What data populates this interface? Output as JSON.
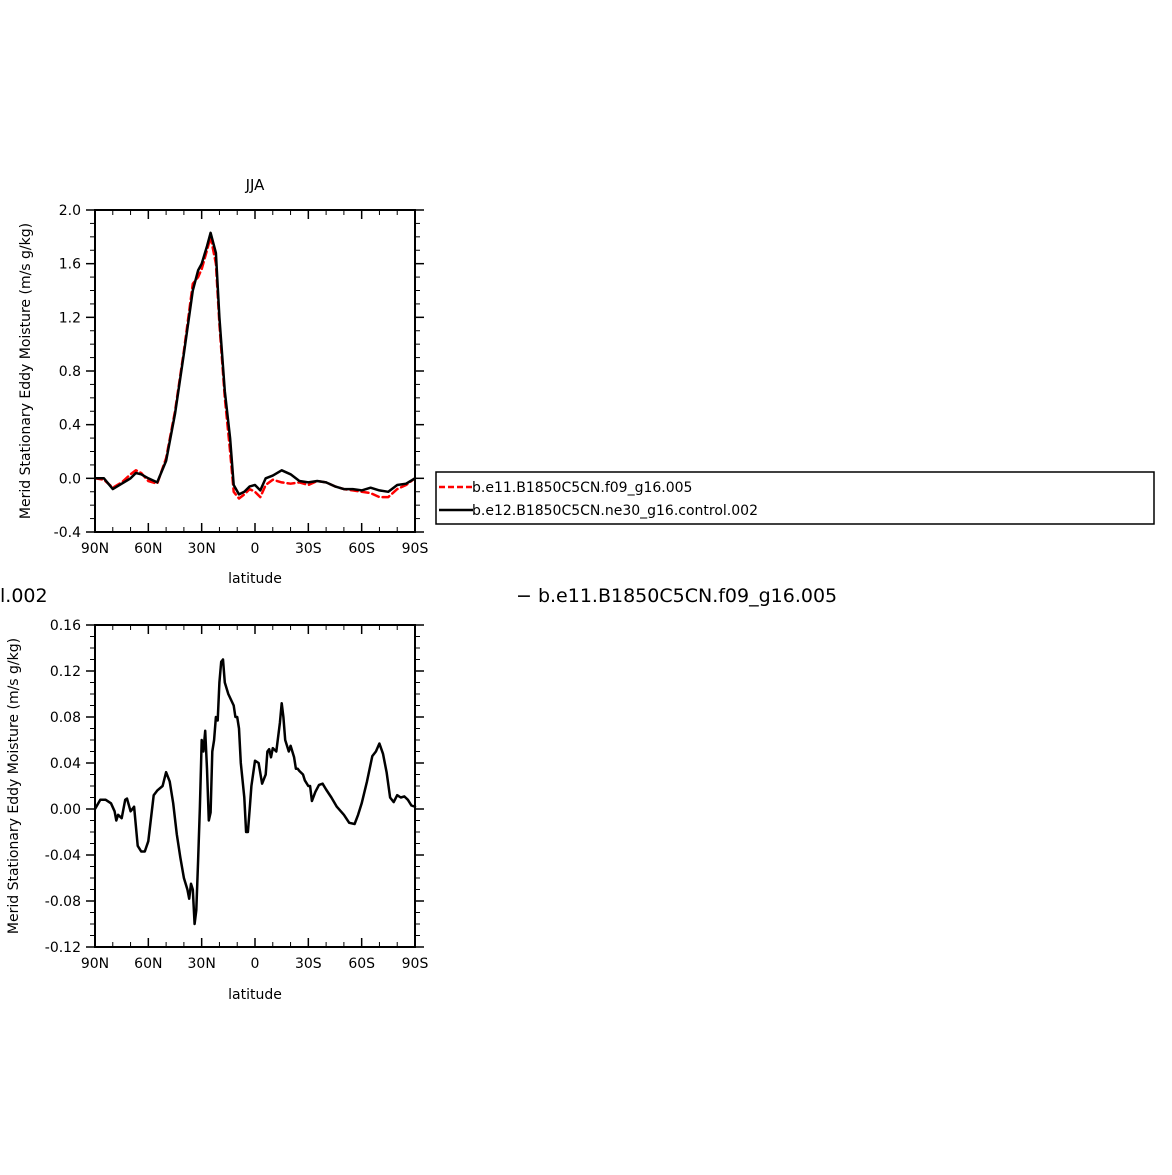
{
  "chart_data": [
    {
      "type": "line",
      "title": "JJA",
      "xlabel": "latitude",
      "ylabel": "Merid Stationary Eddy Moisture (m/s g/kg)",
      "xlim": [
        90,
        -90
      ],
      "ylim": [
        -0.4,
        2.0
      ],
      "x_ticks": [
        90,
        60,
        30,
        0,
        -30,
        -60,
        -90
      ],
      "x_tick_labels": [
        "90N",
        "60N",
        "30N",
        "0",
        "30S",
        "60S",
        "90S"
      ],
      "y_ticks": [
        -0.4,
        0.0,
        0.4,
        0.8,
        1.2,
        1.6,
        2.0
      ],
      "y_tick_labels": [
        "-0.4",
        "0.0",
        "0.4",
        "0.8",
        "1.2",
        "1.6",
        "2.0"
      ],
      "legend_position": "right",
      "series": [
        {
          "name": "b.e11.B1850C5CN.f09_g16.005",
          "color": "#ff0000",
          "dash": "dashed",
          "x": [
            90,
            85,
            80,
            75,
            70,
            67,
            64,
            60,
            55,
            50,
            45,
            40,
            35,
            32,
            30,
            27,
            25,
            22,
            20,
            17,
            14,
            12,
            9,
            6,
            3,
            0,
            -3,
            -6,
            -10,
            -15,
            -20,
            -25,
            -30,
            -35,
            -40,
            -45,
            -50,
            -55,
            -60,
            -65,
            -70,
            -75,
            -80,
            -85,
            -90
          ],
          "y": [
            0.0,
            -0.01,
            -0.07,
            -0.03,
            0.03,
            0.06,
            0.04,
            -0.02,
            -0.04,
            0.15,
            0.5,
            0.95,
            1.45,
            1.5,
            1.56,
            1.7,
            1.8,
            1.6,
            1.15,
            0.6,
            0.2,
            -0.1,
            -0.15,
            -0.12,
            -0.08,
            -0.1,
            -0.14,
            -0.05,
            -0.01,
            -0.03,
            -0.04,
            -0.03,
            -0.05,
            -0.02,
            -0.03,
            -0.06,
            -0.08,
            -0.09,
            -0.1,
            -0.11,
            -0.14,
            -0.14,
            -0.08,
            -0.05,
            0.0
          ]
        },
        {
          "name": "b.e12.B1850C5CN.ne30_g16.control.002",
          "color": "#000000",
          "dash": "solid",
          "x": [
            90,
            85,
            80,
            75,
            70,
            67,
            64,
            60,
            55,
            50,
            45,
            40,
            35,
            32,
            30,
            27,
            25,
            22,
            20,
            17,
            14,
            12,
            9,
            6,
            3,
            0,
            -3,
            -6,
            -10,
            -15,
            -20,
            -25,
            -30,
            -35,
            -40,
            -45,
            -50,
            -55,
            -60,
            -65,
            -70,
            -75,
            -80,
            -85,
            -90
          ],
          "y": [
            0.0,
            0.0,
            -0.08,
            -0.04,
            0.0,
            0.04,
            0.03,
            0.0,
            -0.03,
            0.13,
            0.48,
            0.93,
            1.4,
            1.55,
            1.6,
            1.73,
            1.83,
            1.68,
            1.2,
            0.65,
            0.3,
            -0.05,
            -0.12,
            -0.1,
            -0.06,
            -0.05,
            -0.09,
            0.0,
            0.02,
            0.06,
            0.03,
            -0.02,
            -0.03,
            -0.02,
            -0.03,
            -0.06,
            -0.08,
            -0.08,
            -0.09,
            -0.07,
            -0.09,
            -0.1,
            -0.05,
            -0.04,
            0.0
          ]
        }
      ]
    },
    {
      "type": "line",
      "title": "",
      "xlabel": "latitude",
      "ylabel": "Merid Stationary Eddy Moisture (m/s g/kg)",
      "xlim": [
        90,
        -90
      ],
      "ylim": [
        -0.12,
        0.16
      ],
      "x_ticks": [
        90,
        60,
        30,
        0,
        -30,
        -60,
        -90
      ],
      "x_tick_labels": [
        "90N",
        "60N",
        "30N",
        "0",
        "30S",
        "60S",
        "90S"
      ],
      "y_ticks": [
        -0.12,
        -0.08,
        -0.04,
        0.0,
        0.04,
        0.08,
        0.12,
        0.16
      ],
      "y_tick_labels": [
        "-0.12",
        "-0.08",
        "-0.04",
        "0.00",
        "0.04",
        "0.08",
        "0.12",
        "0.16"
      ],
      "heading_left": "l.002",
      "heading_right": "− b.e11.B1850C5CN.f09_g16.005",
      "series": [
        {
          "color": "#000000",
          "dash": "solid",
          "x": [
            90,
            87,
            84,
            81,
            79,
            78,
            77,
            75,
            73,
            72,
            70,
            68,
            66,
            64,
            62,
            60,
            57,
            55,
            52,
            50,
            48,
            46,
            44,
            42,
            40,
            38,
            37,
            36,
            35,
            34,
            33,
            32,
            31,
            30,
            29,
            28,
            27,
            26,
            25,
            24,
            23,
            22,
            21,
            20,
            19,
            18,
            17,
            15,
            12,
            11,
            10,
            9,
            8,
            6,
            5,
            4,
            3,
            2,
            0,
            -2,
            -4,
            -6,
            -7,
            -8,
            -9,
            -10,
            -12,
            -14,
            -15,
            -16,
            -17,
            -19,
            -20,
            -22,
            -23,
            -24,
            -25,
            -27,
            -28,
            -30,
            -31,
            -32,
            -34,
            -36,
            -38,
            -40,
            -43,
            -46,
            -50,
            -53,
            -56,
            -58,
            -60,
            -63,
            -66,
            -68,
            -70,
            -72,
            -74,
            -76,
            -78,
            -80,
            -82,
            -84,
            -86,
            -88,
            -90
          ],
          "y": [
            0.0,
            0.008,
            0.008,
            0.005,
            -0.002,
            -0.01,
            -0.005,
            -0.008,
            0.008,
            0.009,
            -0.002,
            0.002,
            -0.032,
            -0.037,
            -0.037,
            -0.028,
            0.012,
            0.016,
            0.02,
            0.032,
            0.024,
            0.005,
            -0.022,
            -0.042,
            -0.06,
            -0.07,
            -0.078,
            -0.065,
            -0.07,
            -0.1,
            -0.088,
            -0.045,
            0.002,
            0.06,
            0.05,
            0.068,
            0.035,
            -0.01,
            -0.003,
            0.05,
            0.06,
            0.08,
            0.077,
            0.11,
            0.128,
            0.13,
            0.11,
            0.1,
            0.09,
            0.08,
            0.08,
            0.07,
            0.04,
            0.01,
            -0.02,
            -0.02,
            0.0,
            0.02,
            0.042,
            0.04,
            0.022,
            0.03,
            0.05,
            0.052,
            0.045,
            0.053,
            0.05,
            0.075,
            0.092,
            0.08,
            0.06,
            0.05,
            0.055,
            0.045,
            0.035,
            0.035,
            0.033,
            0.03,
            0.025,
            0.02,
            0.02,
            0.007,
            0.015,
            0.021,
            0.022,
            0.017,
            0.01,
            0.002,
            -0.005,
            -0.012,
            -0.013,
            -0.005,
            0.005,
            0.024,
            0.046,
            0.05,
            0.057,
            0.048,
            0.032,
            0.01,
            0.006,
            0.012,
            0.01,
            0.011,
            0.008,
            0.003,
            0.002
          ]
        }
      ]
    }
  ]
}
